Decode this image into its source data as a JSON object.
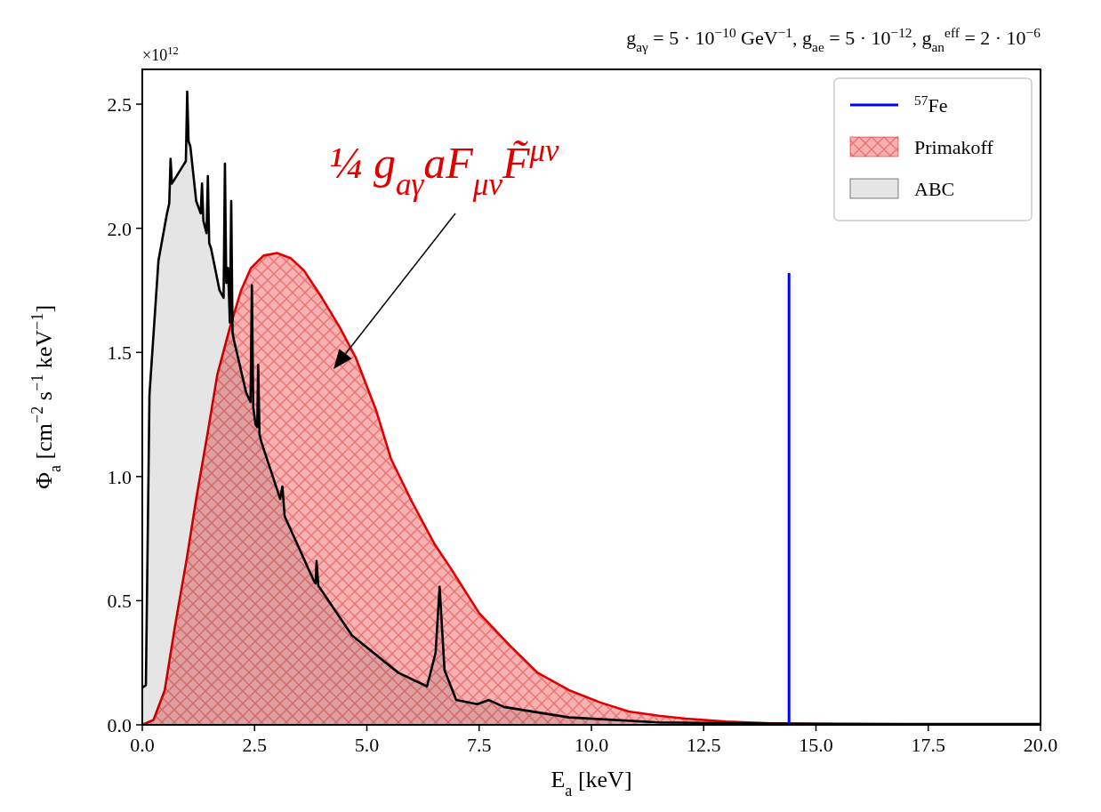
{
  "chart_data": {
    "type": "area",
    "title": "g$_{aγ}$ = 5 · 10$^{−10}$ GeV$^{−1}$, g$_{ae}$ = 5 · 10$^{−12}$, g$_{an}$$^{eff}$ = 2 · 10$^{−6}$",
    "xlabel": "E$_{a}$ [keV]",
    "ylabel": "Φ$_{a}$ [cm$^{−2}$ s$^{−1}$ keV$^{−1}$]",
    "annotations": [
      "×10$^{12}$",
      "¼ g$_{aγ}$aF$_{μν}$F̃$^{μν}$"
    ],
    "series": [
      {
        "name": "$^{57}$Fe",
        "type": "line",
        "color": "#0000ff",
        "x": [
          14.4,
          14.4
        ],
        "values": [
          0,
          1.82
        ]
      },
      {
        "name": "Primakoff",
        "color": "#e00000",
        "x": [
          0,
          0.25,
          0.5,
          0.73,
          1.0,
          1.2,
          1.45,
          1.67,
          1.95,
          2.2,
          2.42,
          2.7,
          3.0,
          3.3,
          3.6,
          4.0,
          4.4,
          4.75,
          5.2,
          5.54,
          6.0,
          6.5,
          6.87,
          7.5,
          8.18,
          8.8,
          9.5,
          10.2,
          10.83,
          11.5,
          12.1,
          13.0,
          14.0,
          15.0,
          16.5,
          18.0,
          20.0
        ],
        "values": [
          0,
          0.02,
          0.14,
          0.4,
          0.68,
          0.91,
          1.17,
          1.41,
          1.6,
          1.75,
          1.84,
          1.89,
          1.9,
          1.88,
          1.83,
          1.72,
          1.6,
          1.48,
          1.27,
          1.07,
          0.9,
          0.73,
          0.63,
          0.45,
          0.32,
          0.21,
          0.14,
          0.09,
          0.054,
          0.037,
          0.025,
          0.013,
          0.006,
          0.003,
          0.001,
          0,
          0
        ]
      },
      {
        "name": "ABC",
        "color": "#000000",
        "x": [
          0,
          0.08,
          0.16,
          0.36,
          0.55,
          0.6,
          0.63,
          0.66,
          0.9,
          0.97,
          1.0,
          1.03,
          1.07,
          1.2,
          1.3,
          1.33,
          1.36,
          1.43,
          1.46,
          1.49,
          1.53,
          1.72,
          1.81,
          1.84,
          1.87,
          1.91,
          1.95,
          1.98,
          2.01,
          2.04,
          2.31,
          2.41,
          2.44,
          2.47,
          2.52,
          2.56,
          2.58,
          2.61,
          2.65,
          3.07,
          3.12,
          3.17,
          3.82,
          3.86,
          3.88,
          3.92,
          3.96,
          4.67,
          5.7,
          6.34,
          6.53,
          6.62,
          6.73,
          6.99,
          7.46,
          7.72,
          8.05,
          9.5,
          11.5,
          14.0,
          17.0,
          20.0
        ],
        "values": [
          0.15,
          0.16,
          1.33,
          1.87,
          2.06,
          2.1,
          2.28,
          2.18,
          2.25,
          2.27,
          2.55,
          2.35,
          2.33,
          2.11,
          2.06,
          2.18,
          2.03,
          1.98,
          2.21,
          1.94,
          1.92,
          1.75,
          1.72,
          2.26,
          1.78,
          1.84,
          1.62,
          2.11,
          1.58,
          1.55,
          1.34,
          1.3,
          1.77,
          1.28,
          1.21,
          1.2,
          1.45,
          1.17,
          1.14,
          0.91,
          0.96,
          0.84,
          0.58,
          0.57,
          0.66,
          0.56,
          0.55,
          0.36,
          0.21,
          0.155,
          0.29,
          0.556,
          0.22,
          0.1,
          0.083,
          0.1,
          0.072,
          0.03,
          0.01,
          0.005,
          0.003,
          0.003
        ]
      }
    ],
    "xlim": [
      0,
      20
    ],
    "xticks": [
      {
        "value": 0,
        "label": "0.0"
      },
      2.5,
      {
        "value": 5,
        "label": "5.0"
      },
      7.5,
      {
        "value": 10,
        "label": "10.0"
      },
      12.5,
      {
        "value": 15,
        "label": "15.0"
      },
      17.5,
      {
        "value": 20,
        "label": "20.0"
      }
    ],
    "ylim": [
      0,
      2.64
    ],
    "yticks": [
      {
        "value": 0,
        "label": "0.0"
      },
      0.5,
      {
        "value": 1,
        "label": "1.0"
      },
      1.5,
      {
        "value": 2,
        "label": "2.0"
      },
      2.5
    ],
    "legend": "top right",
    "grid": false
  }
}
